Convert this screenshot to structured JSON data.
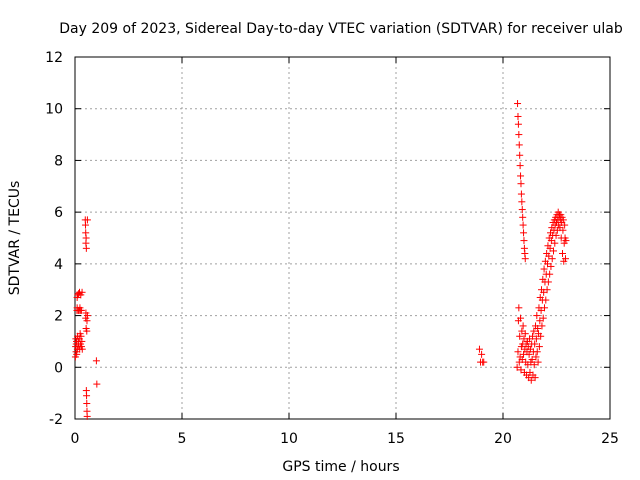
{
  "chart_data": {
    "type": "scatter",
    "title": "Day 209 of 2023, Sidereal Day-to-day VTEC variation (SDTVAR) for receiver ulab",
    "xlabel": "GPS time / hours",
    "ylabel": "SDTVAR / TECUs",
    "xlim": [
      0,
      25
    ],
    "ylim": [
      -2,
      12
    ],
    "xticks": [
      0,
      5,
      10,
      15,
      20,
      25
    ],
    "yticks": [
      -2,
      0,
      2,
      4,
      6,
      8,
      10,
      12
    ],
    "grid": true,
    "marker": "plus",
    "color": "#ff0000",
    "series": [
      {
        "name": "SDTVAR",
        "points": [
          [
            0.02,
            0.4
          ],
          [
            0.03,
            0.8
          ],
          [
            0.04,
            1.1
          ],
          [
            0.05,
            0.6
          ],
          [
            0.06,
            0.9
          ],
          [
            0.07,
            1.0
          ],
          [
            0.08,
            0.5
          ],
          [
            0.09,
            2.2
          ],
          [
            0.1,
            2.3
          ],
          [
            0.1,
            2.7
          ],
          [
            0.11,
            0.7
          ],
          [
            0.12,
            1.2
          ],
          [
            0.13,
            2.8
          ],
          [
            0.14,
            0.9
          ],
          [
            0.15,
            2.2
          ],
          [
            0.16,
            1.0
          ],
          [
            0.17,
            2.85
          ],
          [
            0.18,
            0.8
          ],
          [
            0.19,
            2.2
          ],
          [
            0.2,
            1.1
          ],
          [
            0.21,
            2.9
          ],
          [
            0.22,
            0.7
          ],
          [
            0.23,
            2.3
          ],
          [
            0.24,
            1.3
          ],
          [
            0.25,
            2.2
          ],
          [
            0.26,
            0.9
          ],
          [
            0.27,
            2.8
          ],
          [
            0.28,
            1.2
          ],
          [
            0.3,
            2.2
          ],
          [
            0.3,
            0.8
          ],
          [
            0.32,
            1.0
          ],
          [
            0.33,
            2.9
          ],
          [
            0.34,
            0.7
          ],
          [
            0.48,
            5.7
          ],
          [
            0.49,
            5.5
          ],
          [
            0.5,
            1.9
          ],
          [
            0.5,
            5.2
          ],
          [
            0.51,
            2.1
          ],
          [
            0.51,
            4.8
          ],
          [
            0.52,
            1.5
          ],
          [
            0.52,
            5.0
          ],
          [
            0.53,
            -0.9
          ],
          [
            0.53,
            4.6
          ],
          [
            0.54,
            -1.1
          ],
          [
            0.55,
            -1.4
          ],
          [
            0.55,
            1.4
          ],
          [
            0.56,
            -1.7
          ],
          [
            0.56,
            1.8
          ],
          [
            0.57,
            -1.9
          ],
          [
            0.58,
            5.7
          ],
          [
            0.58,
            2.0
          ],
          [
            1.0,
            0.25
          ],
          [
            1.02,
            -0.65
          ],
          [
            18.9,
            0.7
          ],
          [
            18.95,
            0.2
          ],
          [
            19.0,
            0.5
          ],
          [
            19.05,
            0.2
          ],
          [
            19.1,
            0.2
          ],
          [
            20.68,
            10.2
          ],
          [
            20.7,
            9.7
          ],
          [
            20.72,
            9.4
          ],
          [
            20.74,
            9.0
          ],
          [
            20.76,
            8.6
          ],
          [
            20.78,
            8.2
          ],
          [
            20.8,
            7.8
          ],
          [
            20.82,
            7.4
          ],
          [
            20.84,
            7.1
          ],
          [
            20.86,
            6.7
          ],
          [
            20.88,
            6.4
          ],
          [
            20.9,
            6.1
          ],
          [
            20.92,
            5.8
          ],
          [
            20.94,
            5.5
          ],
          [
            20.96,
            5.2
          ],
          [
            20.98,
            4.9
          ],
          [
            21.0,
            4.6
          ],
          [
            21.02,
            4.4
          ],
          [
            21.04,
            4.2
          ],
          [
            20.66,
            0.0
          ],
          [
            20.7,
            0.6
          ],
          [
            20.72,
            1.8
          ],
          [
            20.74,
            2.3
          ],
          [
            20.76,
            0.2
          ],
          [
            20.78,
            1.2
          ],
          [
            20.8,
            0.4
          ],
          [
            20.82,
            1.9
          ],
          [
            20.84,
            -0.1
          ],
          [
            20.86,
            0.8
          ],
          [
            20.88,
            1.4
          ],
          [
            20.9,
            0.3
          ],
          [
            20.92,
            0.9
          ],
          [
            20.94,
            1.6
          ],
          [
            20.96,
            0.5
          ],
          [
            20.98,
            1.1
          ],
          [
            21.0,
            -0.2
          ],
          [
            21.02,
            0.7
          ],
          [
            21.04,
            1.3
          ],
          [
            21.06,
            0.2
          ],
          [
            21.08,
            0.9
          ],
          [
            21.1,
            -0.3
          ],
          [
            21.12,
            0.6
          ],
          [
            21.14,
            1.0
          ],
          [
            21.16,
            0.1
          ],
          [
            21.18,
            0.8
          ],
          [
            21.2,
            -0.4
          ],
          [
            21.22,
            0.5
          ],
          [
            21.24,
            1.1
          ],
          [
            21.26,
            -0.2
          ],
          [
            21.28,
            0.7
          ],
          [
            21.3,
            0.2
          ],
          [
            21.32,
            -0.5
          ],
          [
            21.34,
            0.9
          ],
          [
            21.36,
            0.3
          ],
          [
            21.38,
            1.2
          ],
          [
            21.4,
            -0.3
          ],
          [
            21.42,
            0.6
          ],
          [
            21.44,
            1.4
          ],
          [
            21.46,
            0.1
          ],
          [
            21.48,
            0.9
          ],
          [
            21.5,
            -0.4
          ],
          [
            21.52,
            1.6
          ],
          [
            21.54,
            0.4
          ],
          [
            21.56,
            1.1
          ],
          [
            21.58,
            2.0
          ],
          [
            21.6,
            0.6
          ],
          [
            21.62,
            1.5
          ],
          [
            21.64,
            0.2
          ],
          [
            21.66,
            1.3
          ],
          [
            21.68,
            2.3
          ],
          [
            21.7,
            0.8
          ],
          [
            21.72,
            1.8
          ],
          [
            21.74,
            2.7
          ],
          [
            21.76,
            1.2
          ],
          [
            21.78,
            2.2
          ],
          [
            21.8,
            3.0
          ],
          [
            21.82,
            1.6
          ],
          [
            21.84,
            2.6
          ],
          [
            21.86,
            3.4
          ],
          [
            21.88,
            1.9
          ],
          [
            21.9,
            2.9
          ],
          [
            21.92,
            3.8
          ],
          [
            21.94,
            2.3
          ],
          [
            21.96,
            3.3
          ],
          [
            21.98,
            4.1
          ],
          [
            22.0,
            2.6
          ],
          [
            22.02,
            3.6
          ],
          [
            22.04,
            4.4
          ],
          [
            22.06,
            3.0
          ],
          [
            22.08,
            4.0
          ],
          [
            22.1,
            4.7
          ],
          [
            22.12,
            3.3
          ],
          [
            22.14,
            4.3
          ],
          [
            22.16,
            5.0
          ],
          [
            22.18,
            3.6
          ],
          [
            22.2,
            4.6
          ],
          [
            22.22,
            5.2
          ],
          [
            22.24,
            3.9
          ],
          [
            22.26,
            4.9
          ],
          [
            22.28,
            5.4
          ],
          [
            22.3,
            4.2
          ],
          [
            22.32,
            5.1
          ],
          [
            22.34,
            5.6
          ],
          [
            22.36,
            4.5
          ],
          [
            22.38,
            5.3
          ],
          [
            22.4,
            5.7
          ],
          [
            22.42,
            4.8
          ],
          [
            22.44,
            5.5
          ],
          [
            22.46,
            5.8
          ],
          [
            22.48,
            5.1
          ],
          [
            22.5,
            5.6
          ],
          [
            22.52,
            5.9
          ],
          [
            22.54,
            5.3
          ],
          [
            22.56,
            5.7
          ],
          [
            22.58,
            6.0
          ],
          [
            22.6,
            5.5
          ],
          [
            22.62,
            5.8
          ],
          [
            22.64,
            5.9
          ],
          [
            22.66,
            5.4
          ],
          [
            22.68,
            5.7
          ],
          [
            22.7,
            5.9
          ],
          [
            22.72,
            5.0
          ],
          [
            22.74,
            5.6
          ],
          [
            22.76,
            5.8
          ],
          [
            22.78,
            4.4
          ],
          [
            22.8,
            5.3
          ],
          [
            22.82,
            5.7
          ],
          [
            22.84,
            4.1
          ],
          [
            22.86,
            4.8
          ],
          [
            22.88,
            5.5
          ],
          [
            22.9,
            5.0
          ],
          [
            22.92,
            4.2
          ],
          [
            22.94,
            4.9
          ]
        ]
      }
    ]
  }
}
